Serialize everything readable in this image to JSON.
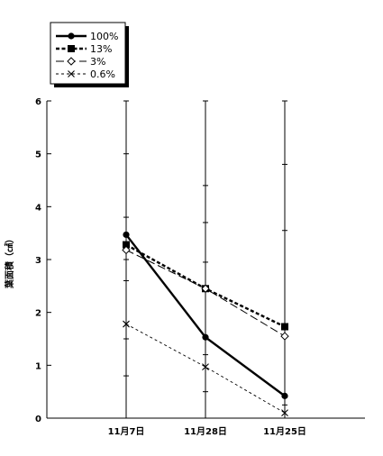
{
  "chart_data": {
    "type": "line",
    "title": "",
    "xlabel": "",
    "ylabel": "葉面積（㎠）",
    "categories": [
      "11月7日",
      "11月28日",
      "11月25日"
    ],
    "ylim": [
      0,
      6
    ],
    "yticks": [
      "0",
      "1",
      "2",
      "3",
      "4",
      "5",
      "6"
    ],
    "grid": false,
    "legend_position": "top-left",
    "series": [
      {
        "name": "100%",
        "values": [
          3.47,
          1.53,
          0.42
        ],
        "line_style": "solid",
        "marker": "circle",
        "color": "#000000",
        "error_upper": [
          6.0,
          6.0,
          6.0
        ],
        "error_lower": [
          0.0,
          0.0,
          0.0
        ]
      },
      {
        "name": "13%",
        "values": [
          3.28,
          2.45,
          1.73
        ],
        "line_style": "dotted",
        "marker": "square",
        "color": "#000000",
        "error_upper": [
          5.0,
          4.4,
          4.8
        ],
        "error_lower": [
          1.5,
          0.5,
          0.0
        ]
      },
      {
        "name": "3%",
        "values": [
          3.18,
          2.45,
          1.55
        ],
        "line_style": "dashed",
        "marker": "diamond",
        "color": "#000000",
        "error_upper": [
          3.8,
          3.7,
          3.55
        ],
        "error_lower": [
          2.6,
          1.2,
          0.0
        ]
      },
      {
        "name": "0.6%",
        "values": [
          1.78,
          0.97,
          0.1
        ],
        "line_style": "fine-dashed",
        "marker": "x",
        "color": "#000000",
        "error_upper": [
          3.0,
          2.95,
          0.25
        ],
        "error_lower": [
          0.8,
          0.0,
          0.0
        ]
      }
    ]
  }
}
